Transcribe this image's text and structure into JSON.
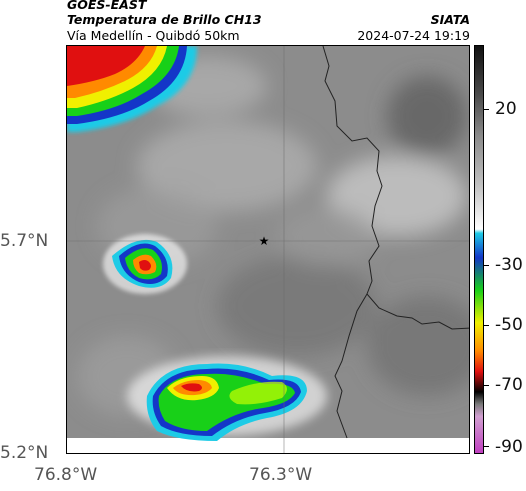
{
  "header": {
    "satellite": "GOES-EAST",
    "product": "Temperatura de Brillo CH13",
    "subtitle": "Vía Medellín - Quibdó 50km",
    "agency": "SIATA",
    "datetime": "2024-07-24 19:19"
  },
  "axes": {
    "lat_labels": [
      "5.7°N",
      "5.2°N"
    ],
    "lon_labels": [
      "76.8°W",
      "76.3°W"
    ]
  },
  "colorbar": {
    "labels": [
      "20",
      "-30",
      "-50",
      "-70",
      "-90"
    ],
    "colors": {
      "top": "#111111",
      "gray": "#b0b0b0",
      "white": "#ffffff",
      "cyan": "#1ecbe6",
      "blue": "#1436c8",
      "green": "#18d018",
      "yellow": "#f0f000",
      "orange": "#ff8a00",
      "red": "#e01010",
      "black": "#000000",
      "magenta": "#c040c0"
    }
  },
  "map": {
    "marker": "star-icon",
    "colors": {
      "cloud_base": "#8a8a8a",
      "border_line": "#222222",
      "grid": "#6a6a6a"
    }
  }
}
